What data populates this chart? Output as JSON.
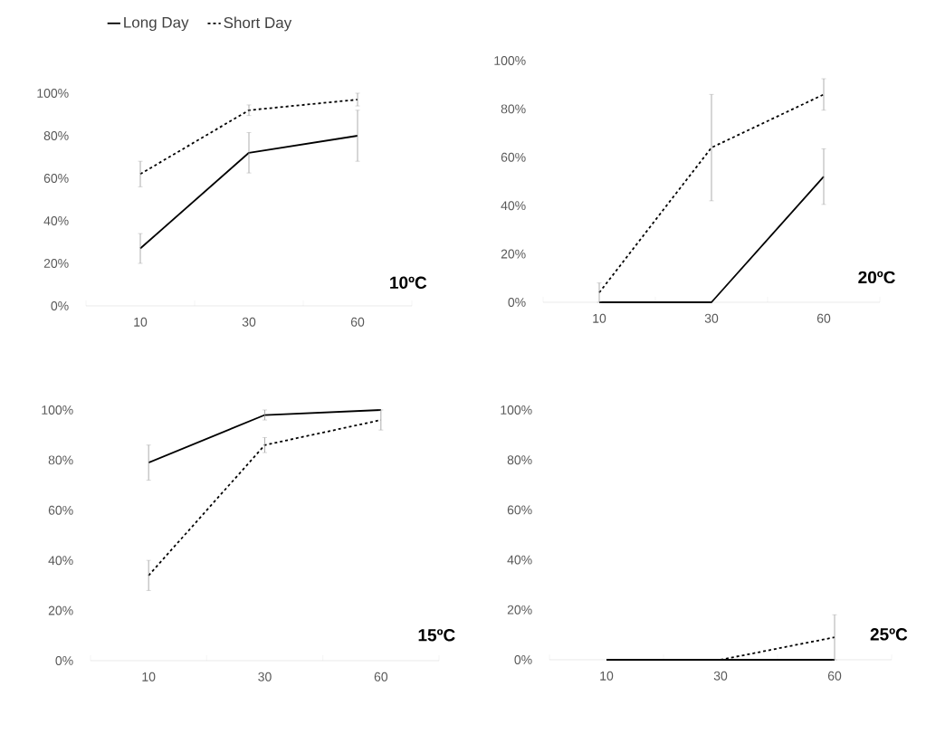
{
  "chart_data": [
    {
      "type": "line",
      "categories": [
        "10",
        "30",
        "60"
      ],
      "ylim": [
        0,
        100
      ],
      "yticks": [
        {
          "value": 0,
          "label": "0%"
        },
        {
          "value": 20,
          "label": "20%"
        },
        {
          "value": 40,
          "label": "40%"
        },
        {
          "value": 60,
          "label": "60%"
        },
        {
          "value": 80,
          "label": "80%"
        },
        {
          "value": 100,
          "label": "100%"
        }
      ],
      "legend": "top",
      "annotations": [
        "10ºC"
      ],
      "series": [
        {
          "name": "Long Day",
          "color": "#000000",
          "line_style": "solid",
          "values": [
            27,
            72,
            80
          ],
          "errors": [
            7,
            9.5,
            12
          ]
        },
        {
          "name": "Short Day",
          "color": "#000000",
          "line_style": "dashed",
          "values": [
            62,
            92,
            97
          ],
          "errors": [
            6,
            2.5,
            3
          ]
        }
      ]
    },
    {
      "type": "line",
      "categories": [
        "10",
        "30",
        "60"
      ],
      "ylim": [
        0,
        100
      ],
      "yticks": [
        {
          "value": 0,
          "label": "0%"
        },
        {
          "value": 20,
          "label": "20%"
        },
        {
          "value": 40,
          "label": "40%"
        },
        {
          "value": 60,
          "label": "60%"
        },
        {
          "value": 80,
          "label": "80%"
        },
        {
          "value": 100,
          "label": "100%"
        }
      ],
      "annotations": [
        "20ºC"
      ],
      "series": [
        {
          "color": "#000000",
          "line_style": "solid",
          "values": [
            0,
            0,
            52
          ],
          "errors": [
            null,
            null,
            11.5
          ]
        },
        {
          "color": "#000000",
          "line_style": "dashed",
          "values": [
            4,
            64,
            86
          ],
          "errors": [
            4,
            22,
            6.5
          ]
        }
      ]
    },
    {
      "type": "line",
      "categories": [
        "10",
        "30",
        "60"
      ],
      "ylim": [
        0,
        100
      ],
      "yticks": [
        {
          "value": 0,
          "label": "0%"
        },
        {
          "value": 20,
          "label": "20%"
        },
        {
          "value": 40,
          "label": "40%"
        },
        {
          "value": 60,
          "label": "60%"
        },
        {
          "value": 80,
          "label": "80%"
        },
        {
          "value": 100,
          "label": "100%"
        }
      ],
      "annotations": [
        "15ºC"
      ],
      "series": [
        {
          "color": "#000000",
          "line_style": "solid",
          "values": [
            79,
            98,
            100
          ],
          "errors": [
            7,
            2,
            null
          ]
        },
        {
          "color": "#000000",
          "line_style": "dashed",
          "values": [
            34,
            86,
            96
          ],
          "errors": [
            6,
            3,
            4
          ]
        }
      ]
    },
    {
      "type": "line",
      "categories": [
        "10",
        "30",
        "60"
      ],
      "ylim": [
        0,
        100
      ],
      "yticks": [
        {
          "value": 0,
          "label": "0%"
        },
        {
          "value": 20,
          "label": "20%"
        },
        {
          "value": 40,
          "label": "40%"
        },
        {
          "value": 60,
          "label": "60%"
        },
        {
          "value": 80,
          "label": "80%"
        },
        {
          "value": 100,
          "label": "100%"
        }
      ],
      "annotations": [
        "25ºC"
      ],
      "series": [
        {
          "color": "#000000",
          "line_style": "solid",
          "values": [
            0,
            0,
            0
          ]
        },
        {
          "color": "#000000",
          "line_style": "dashed",
          "values": [
            null,
            0,
            9
          ],
          "errors": [
            null,
            null,
            9
          ]
        }
      ]
    }
  ]
}
